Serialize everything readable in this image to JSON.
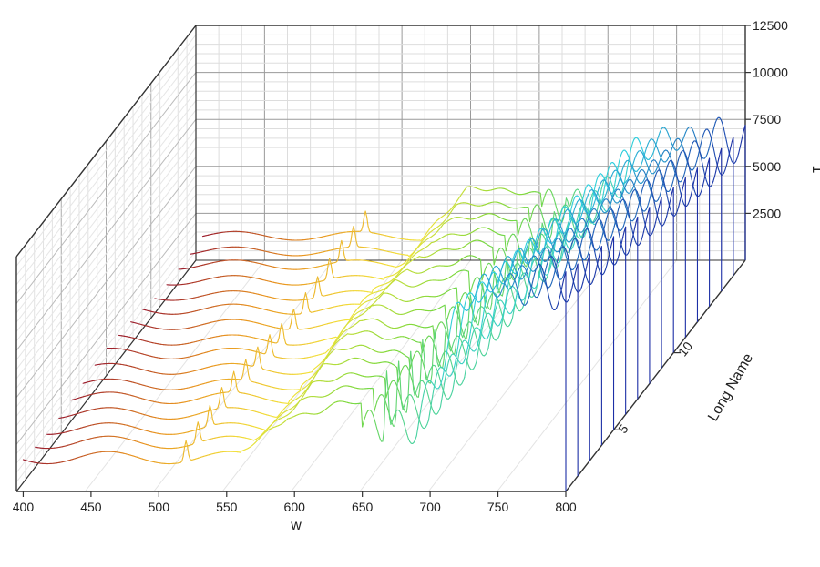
{
  "chart_data": {
    "type": "line",
    "style": "3d-waterfall",
    "xlabel": "w",
    "ylabel": "Long Name",
    "zlabel": "1",
    "xlim": [
      395,
      800
    ],
    "zlim": [
      0,
      12500
    ],
    "x_ticks": [
      "400",
      "450",
      "500",
      "550",
      "600",
      "650",
      "700",
      "750",
      "800"
    ],
    "y_ticks": [
      "5",
      "10"
    ],
    "z_ticks": [
      "2500",
      "5000",
      "7500",
      "10000",
      "12500"
    ],
    "series_count": 16,
    "grid": true,
    "colormap": [
      "#9b1c2c",
      "#e8921e",
      "#f2e23a",
      "#7ad83a",
      "#2ecfe0",
      "#1c2fa6"
    ],
    "wave_region": {
      "x_start": 650,
      "x_end": 800
    },
    "series": [
      {
        "index": 1,
        "pre_peak_level": 1800,
        "hump_level": 4300,
        "sharp_peak_height": 7100,
        "plateau_level": 10900
      },
      {
        "index": 2,
        "pre_peak_level": 1800,
        "hump_level": 4300,
        "sharp_peak_height": 6800,
        "plateau_level": 10500
      },
      {
        "index": 3,
        "pre_peak_level": 1700,
        "hump_level": 4200,
        "sharp_peak_height": 6500,
        "plateau_level": 10200
      },
      {
        "index": 4,
        "pre_peak_level": 1700,
        "hump_level": 4200,
        "sharp_peak_height": 6300,
        "plateau_level": 9800
      },
      {
        "index": 5,
        "pre_peak_level": 1700,
        "hump_level": 4100,
        "sharp_peak_height": 6000,
        "plateau_level": 9500
      },
      {
        "index": 6,
        "pre_peak_level": 1600,
        "hump_level": 4100,
        "sharp_peak_height": 5800,
        "plateau_level": 9200
      },
      {
        "index": 7,
        "pre_peak_level": 1600,
        "hump_level": 4000,
        "sharp_peak_height": 5600,
        "plateau_level": 8900
      },
      {
        "index": 8,
        "pre_peak_level": 1600,
        "hump_level": 4000,
        "sharp_peak_height": 5400,
        "plateau_level": 8600
      },
      {
        "index": 9,
        "pre_peak_level": 1500,
        "hump_level": 3900,
        "sharp_peak_height": 5200,
        "plateau_level": 8300
      },
      {
        "index": 10,
        "pre_peak_level": 1500,
        "hump_level": 3900,
        "sharp_peak_height": 5000,
        "plateau_level": 8000
      },
      {
        "index": 11,
        "pre_peak_level": 1500,
        "hump_level": 3800,
        "sharp_peak_height": 4800,
        "plateau_level": 7700
      },
      {
        "index": 12,
        "pre_peak_level": 1400,
        "hump_level": 3800,
        "sharp_peak_height": 4600,
        "plateau_level": 7400
      },
      {
        "index": 13,
        "pre_peak_level": 1400,
        "hump_level": 3700,
        "sharp_peak_height": 4400,
        "plateau_level": 7100
      },
      {
        "index": 14,
        "pre_peak_level": 1400,
        "hump_level": 3700,
        "sharp_peak_height": 4300,
        "plateau_level": 6800
      },
      {
        "index": 15,
        "pre_peak_level": 1300,
        "hump_level": 3600,
        "sharp_peak_height": 4100,
        "plateau_level": 6600
      },
      {
        "index": 16,
        "pre_peak_level": 1300,
        "hump_level": 3600,
        "sharp_peak_height": 4000,
        "plateau_level": 6400
      }
    ]
  }
}
